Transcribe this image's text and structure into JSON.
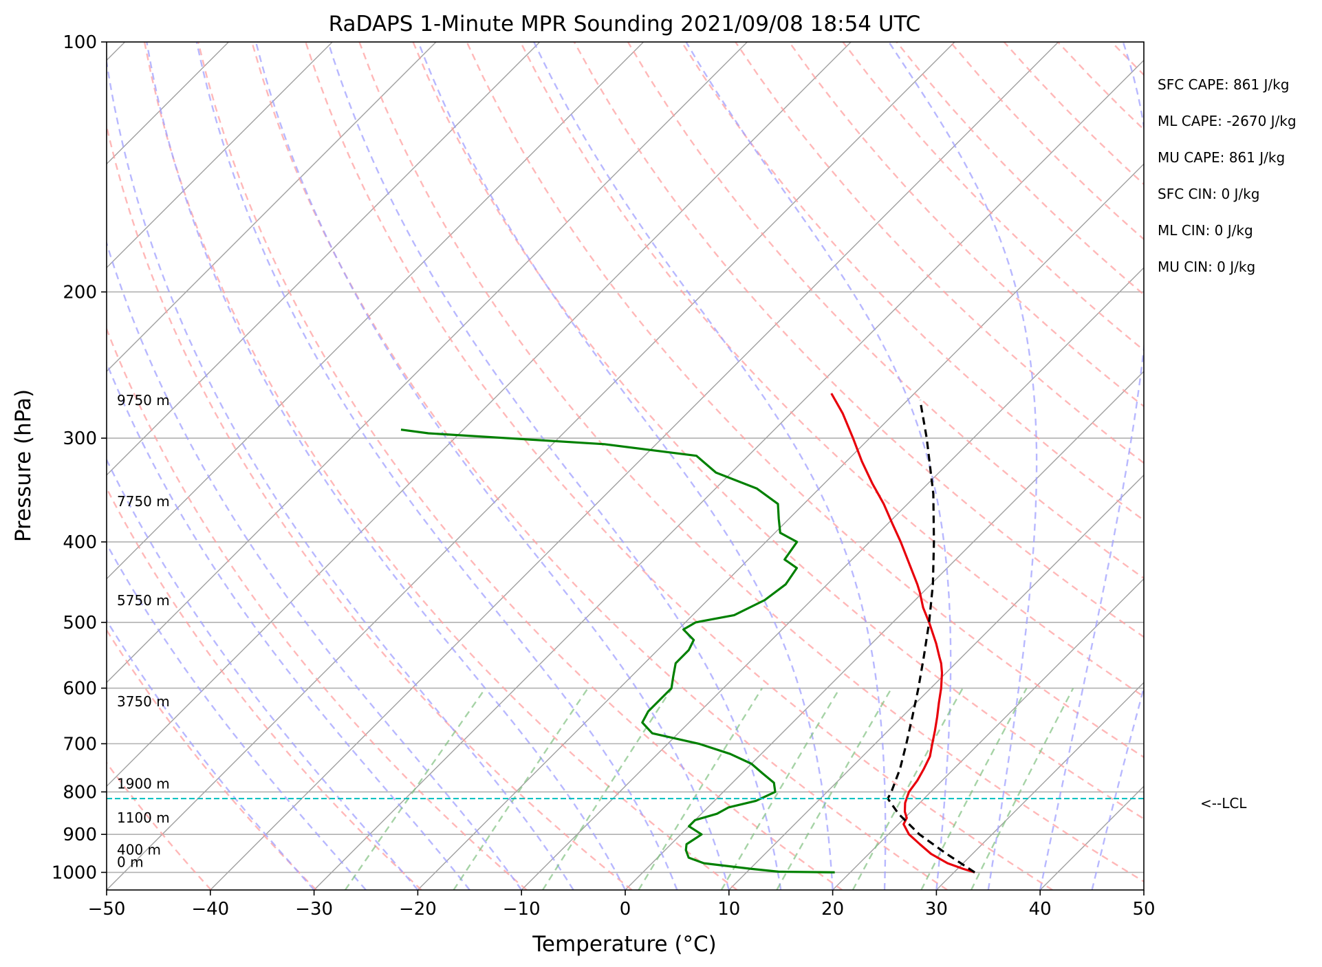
{
  "chart_data": {
    "type": "line",
    "subtype": "skew-t log-p",
    "title": "RaDAPS 1-Minute MPR Sounding 2021/09/08 18:54 UTC",
    "xlabel": "Temperature (°C)",
    "ylabel": "Pressure (hPa)",
    "xlim": [
      -50,
      50
    ],
    "ylim": [
      1050,
      100
    ],
    "yscale": "log",
    "grid": true,
    "x_ticks": [
      -50,
      -40,
      -30,
      -20,
      -10,
      0,
      10,
      20,
      30,
      40,
      50
    ],
    "y_ticks": [
      100,
      200,
      300,
      400,
      500,
      600,
      700,
      800,
      900,
      1000
    ],
    "x_tick_labels": [
      "−50",
      "−40",
      "−30",
      "−20",
      "−10",
      "0",
      "10",
      "20",
      "30",
      "40",
      "50"
    ],
    "y_tick_labels": [
      "100",
      "200",
      "300",
      "400",
      "500",
      "600",
      "700",
      "800",
      "900",
      "1000"
    ],
    "series": [
      {
        "key": "temperature",
        "color": "#e8000b",
        "style": "solid",
        "points": [
          [
            1000,
            32.0
          ],
          [
            990,
            30.5
          ],
          [
            975,
            28.5
          ],
          [
            950,
            26.0
          ],
          [
            925,
            24.0
          ],
          [
            900,
            22.0
          ],
          [
            875,
            20.5
          ],
          [
            860,
            20.2
          ],
          [
            845,
            19.4
          ],
          [
            825,
            18.6
          ],
          [
            800,
            17.9
          ],
          [
            775,
            17.6
          ],
          [
            750,
            17.1
          ],
          [
            725,
            16.5
          ],
          [
            700,
            15.5
          ],
          [
            675,
            14.5
          ],
          [
            650,
            13.4
          ],
          [
            625,
            12.2
          ],
          [
            600,
            11.0
          ],
          [
            575,
            9.6
          ],
          [
            560,
            8.6
          ],
          [
            550,
            7.8
          ],
          [
            530,
            6.2
          ],
          [
            500,
            3.5
          ],
          [
            480,
            1.5
          ],
          [
            460,
            -0.3
          ],
          [
            450,
            -1.3
          ],
          [
            430,
            -3.5
          ],
          [
            400,
            -7.0
          ],
          [
            380,
            -9.6
          ],
          [
            360,
            -12.3
          ],
          [
            340,
            -15.4
          ],
          [
            320,
            -18.5
          ],
          [
            300,
            -21.6
          ],
          [
            280,
            -25.0
          ],
          [
            265,
            -28.0
          ]
        ]
      },
      {
        "key": "dewpoint",
        "color": "#008000",
        "style": "solid",
        "points": [
          [
            1000,
            18.5
          ],
          [
            998,
            13.0
          ],
          [
            990,
            10.0
          ],
          [
            975,
            5.0
          ],
          [
            960,
            3.0
          ],
          [
            940,
            2.0
          ],
          [
            925,
            1.5
          ],
          [
            900,
            2.0
          ],
          [
            880,
            0.0
          ],
          [
            865,
            0.0
          ],
          [
            850,
            1.5
          ],
          [
            835,
            2.0
          ],
          [
            820,
            4.0
          ],
          [
            800,
            5.0
          ],
          [
            780,
            4.0
          ],
          [
            760,
            2.0
          ],
          [
            740,
            0.0
          ],
          [
            720,
            -3.0
          ],
          [
            700,
            -7.0
          ],
          [
            680,
            -12.5
          ],
          [
            660,
            -14.5
          ],
          [
            640,
            -15.0
          ],
          [
            620,
            -15.0
          ],
          [
            600,
            -15.0
          ],
          [
            580,
            -16.0
          ],
          [
            560,
            -17.0
          ],
          [
            540,
            -17.0
          ],
          [
            525,
            -17.5
          ],
          [
            510,
            -19.5
          ],
          [
            500,
            -19.0
          ],
          [
            490,
            -16.0
          ],
          [
            470,
            -14.5
          ],
          [
            450,
            -14.0
          ],
          [
            430,
            -14.5
          ],
          [
            420,
            -16.5
          ],
          [
            400,
            -17.0
          ],
          [
            390,
            -19.5
          ],
          [
            375,
            -21.0
          ],
          [
            360,
            -22.5
          ],
          [
            345,
            -26.0
          ],
          [
            330,
            -31.5
          ],
          [
            315,
            -35.0
          ],
          [
            305,
            -45.0
          ],
          [
            296,
            -63.0
          ],
          [
            293,
            -66.0
          ]
        ]
      },
      {
        "key": "parcel profile",
        "color": "#000000",
        "style": "dashed",
        "points": [
          [
            1000,
            32.0
          ],
          [
            950,
            27.5
          ],
          [
            900,
            23.0
          ],
          [
            850,
            19.0
          ],
          [
            815,
            16.5
          ],
          [
            800,
            16.2
          ],
          [
            750,
            14.8
          ],
          [
            700,
            13.0
          ],
          [
            650,
            11.0
          ],
          [
            600,
            8.8
          ],
          [
            550,
            6.3
          ],
          [
            500,
            3.5
          ],
          [
            450,
            0.2
          ],
          [
            400,
            -3.8
          ],
          [
            350,
            -8.5
          ],
          [
            300,
            -14.5
          ],
          [
            270,
            -18.8
          ]
        ]
      }
    ],
    "lcl": {
      "pressure": 815,
      "label": "<--LCL",
      "color": "#00bfbf"
    },
    "height_labels": [
      {
        "label": "9750 m",
        "pressure": 278
      },
      {
        "label": "7750 m",
        "pressure": 368
      },
      {
        "label": "5750 m",
        "pressure": 484
      },
      {
        "label": "3750 m",
        "pressure": 641
      },
      {
        "label": "1900 m",
        "pressure": 805
      },
      {
        "label": "1100 m",
        "pressure": 884
      },
      {
        "label": "400 m",
        "pressure": 966
      },
      {
        "label": "0 m",
        "pressure": 1000
      }
    ],
    "background_lines": {
      "isotherms": {
        "color": "#a0a0a0",
        "values": [
          -140,
          -130,
          -120,
          -110,
          -100,
          -90,
          -80,
          -70,
          -60,
          -50,
          -40,
          -30,
          -20,
          -10,
          0,
          10,
          20,
          30,
          40,
          50
        ]
      },
      "dry_adiabats": {
        "color": "#ffa0a0",
        "values_K": [
          230,
          240,
          250,
          260,
          270,
          280,
          290,
          300,
          310,
          320,
          330,
          340,
          350,
          360,
          370,
          380,
          390,
          400,
          410,
          420,
          430,
          440,
          450,
          460
        ]
      },
      "moist_adiabats": {
        "color": "#a0a0ff",
        "start_values_C": [
          -30,
          -25,
          -20,
          -15,
          -10,
          -5,
          0,
          5,
          10,
          15,
          20,
          25,
          30,
          35,
          40,
          45
        ]
      },
      "mixing_ratio_lines": {
        "color": "#80c080",
        "values_gkg": [
          0.4,
          1,
          2,
          4,
          7,
          10,
          16,
          24,
          32
        ]
      }
    },
    "annotations": [
      "SFC CAPE: 861 J/kg",
      "ML CAPE: -2670 J/kg",
      "MU CAPE: 861 J/kg",
      "SFC CIN: 0 J/kg",
      "ML CIN: 0 J/kg",
      "MU CIN: 0 J/kg"
    ]
  }
}
